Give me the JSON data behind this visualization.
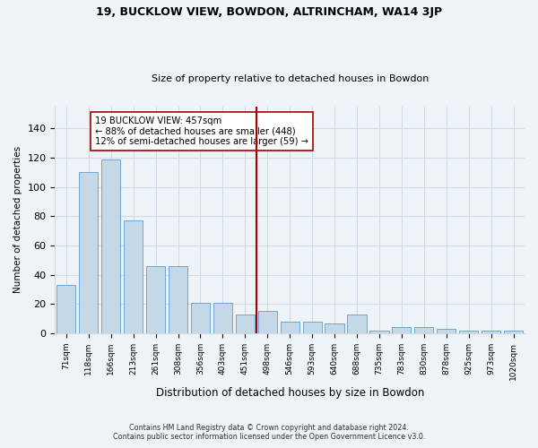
{
  "title_line1": "19, BUCKLOW VIEW, BOWDON, ALTRINCHAM, WA14 3JP",
  "title_line2": "Size of property relative to detached houses in Bowdon",
  "xlabel": "Distribution of detached houses by size in Bowdon",
  "ylabel": "Number of detached properties",
  "footer_line1": "Contains HM Land Registry data © Crown copyright and database right 2024.",
  "footer_line2": "Contains public sector information licensed under the Open Government Licence v3.0.",
  "categories": [
    "71sqm",
    "118sqm",
    "166sqm",
    "213sqm",
    "261sqm",
    "308sqm",
    "356sqm",
    "403sqm",
    "451sqm",
    "498sqm",
    "546sqm",
    "593sqm",
    "640sqm",
    "688sqm",
    "735sqm",
    "783sqm",
    "830sqm",
    "878sqm",
    "925sqm",
    "973sqm",
    "1020sqm"
  ],
  "values": [
    33,
    110,
    119,
    77,
    46,
    46,
    21,
    21,
    13,
    15,
    8,
    8,
    7,
    13,
    2,
    4,
    4,
    3,
    2,
    2,
    2
  ],
  "bar_color": "#c5d8e8",
  "bar_edge_color": "#5b9bd5",
  "grid_color": "#d0d8e4",
  "background_color": "#eef3f8",
  "vline_x": 8.5,
  "vline_color": "#aa0000",
  "annotation_text": "19 BUCKLOW VIEW: 457sqm\n← 88% of detached houses are smaller (448)\n12% of semi-detached houses are larger (59) →",
  "annotation_box_color": "#ffffff",
  "annotation_box_edge": "#aa0000",
  "ylim": [
    0,
    155
  ],
  "yticks": [
    0,
    20,
    40,
    60,
    80,
    100,
    120,
    140
  ],
  "figwidth": 6.0,
  "figheight": 5.0,
  "dpi": 100
}
